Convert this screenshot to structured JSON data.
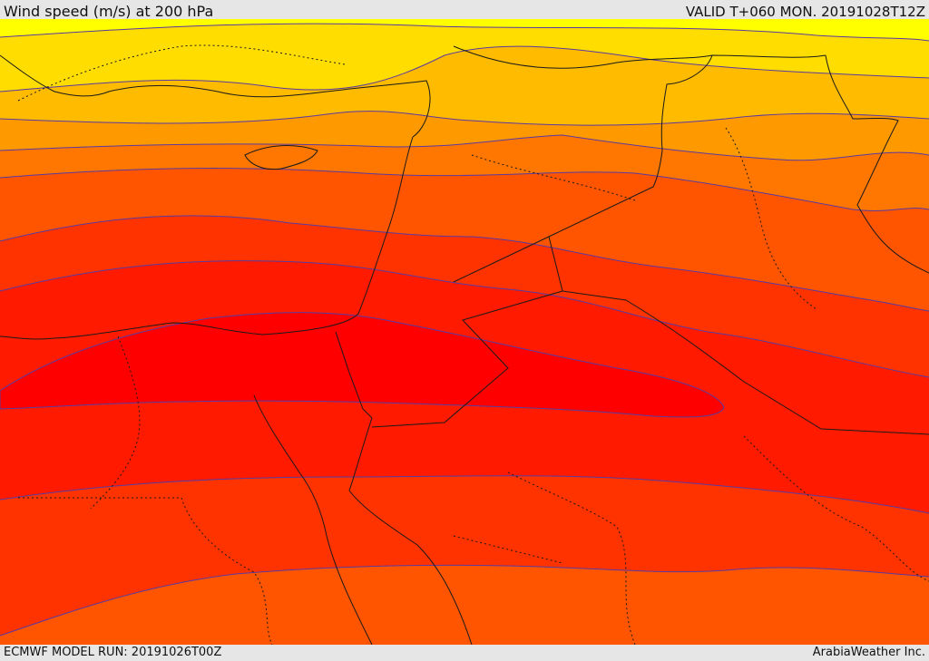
{
  "header": {
    "title": "Wind speed (m/s) at 200 hPa",
    "valid": "VALID T+060 MON. 20191028T12Z"
  },
  "footer": {
    "model_run": "ECMWF MODEL RUN: 20191026T00Z",
    "credit": "ArabiaWeather Inc."
  },
  "colors": {
    "band_1": "#ffff00",
    "band_2": "#ffdd00",
    "band_3": "#ffbb00",
    "band_4": "#ff9900",
    "band_5": "#ff7700",
    "band_6": "#ff5500",
    "band_7": "#ff3300",
    "band_8": "#ff1a00",
    "band_core": "#ff0000",
    "contour_line": "#5a3aa0",
    "border_line": "#1a1a1a"
  }
}
